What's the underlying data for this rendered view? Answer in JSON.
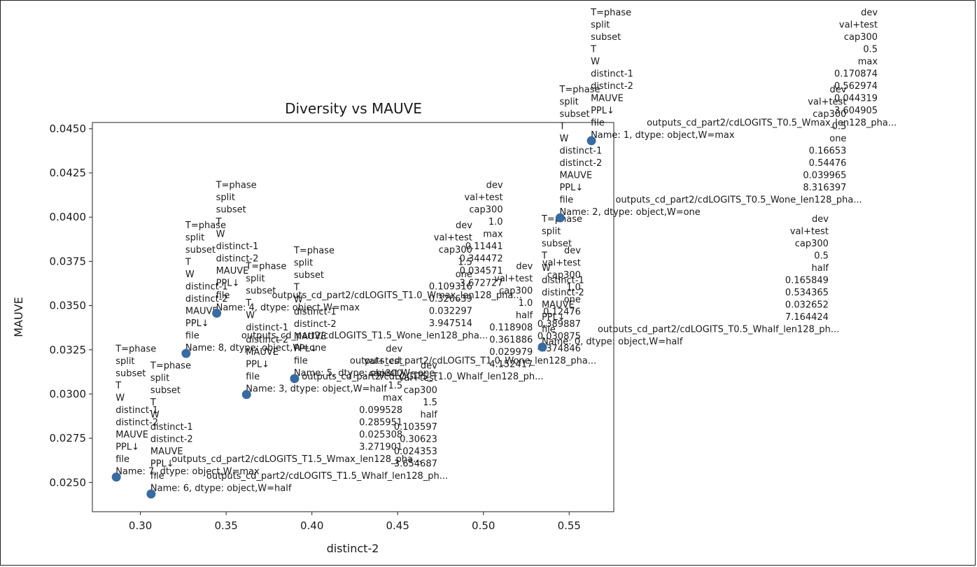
{
  "chart_data": {
    "type": "scatter",
    "title": "Diversity vs MAUVE",
    "xlabel": "distinct-2",
    "ylabel": "MAUVE",
    "xlim": [
      0.272,
      0.576
    ],
    "ylim": [
      0.02335,
      0.04535
    ],
    "xticks": [
      "0.30",
      "0.35",
      "0.40",
      "0.45",
      "0.50",
      "0.55"
    ],
    "xtick_values": [
      0.3,
      0.35,
      0.4,
      0.45,
      0.5,
      0.55
    ],
    "yticks": [
      "0.0250",
      "0.0275",
      "0.0300",
      "0.0325",
      "0.0350",
      "0.0375",
      "0.0400",
      "0.0425",
      "0.0450"
    ],
    "ytick_values": [
      0.025,
      0.0275,
      0.03,
      0.0325,
      0.035,
      0.0375,
      0.04,
      0.0425,
      0.045
    ],
    "grid": false,
    "marker_color": "#3a6b9f",
    "points": [
      {
        "x": 0.562974,
        "y": 0.044319,
        "values": [
          "dev",
          "val+test",
          "cap300",
          "0.5",
          "max",
          "0.170874",
          "0.562974",
          "0.044319",
          "3.604905",
          "outputs_cd_part2/cdLOGITS_T0.5_Wmax_len128_pha..."
        ],
        "name_line": "Name: 1, dtype: object,W=max"
      },
      {
        "x": 0.54476,
        "y": 0.039965,
        "values": [
          "dev",
          "val+test",
          "cap300",
          "0.5",
          "one",
          "0.16653",
          "0.54476",
          "0.039965",
          "8.316397",
          "outputs_cd_part2/cdLOGITS_T0.5_Wone_len128_pha..."
        ],
        "name_line": "Name: 2, dtype: object,W=one"
      },
      {
        "x": 0.534365,
        "y": 0.032652,
        "values": [
          "dev",
          "val+test",
          "cap300",
          "0.5",
          "half",
          "0.165849",
          "0.534365",
          "0.032652",
          "7.164424",
          "outputs_cd_part2/cdLOGITS_T0.5_Whalf_len128_ph..."
        ],
        "name_line": "Name: 0, dtype: object,W=half"
      },
      {
        "x": 0.344472,
        "y": 0.034571,
        "values": [
          "dev",
          "val+test",
          "cap300",
          "1.0",
          "max",
          "0.11441",
          "0.344472",
          "0.034571",
          "3.672727",
          "outputs_cd_part2/cdLOGITS_T1.0_Wmax_len128_pha..."
        ],
        "name_line": "Name: 4, dtype: object,W=max"
      },
      {
        "x": 0.326639,
        "y": 0.032297,
        "values": [
          "dev",
          "val+test",
          "cap300",
          "1.5",
          "one",
          "0.109316",
          "0.326639",
          "0.032297",
          "3.947514",
          "outputs_cd_part2/cdLOGITS_T1.5_Wone_len128_pha..."
        ],
        "name_line": "Name: 8, dtype: object,W=one"
      },
      {
        "x": 0.389887,
        "y": 0.030875,
        "values": [
          "dev",
          "val+test",
          "cap300",
          "1.0",
          "one",
          "0.12476",
          "0.389887",
          "0.030875",
          "4.374846",
          "outputs_cd_part2/cdLOGITS_T1.0_Wone_len128_pha..."
        ],
        "name_line": "Name: 5, dtype: object,W=one"
      },
      {
        "x": 0.361886,
        "y": 0.029979,
        "values": [
          "dev",
          "val+test",
          "cap300",
          "1.0",
          "half",
          "0.118908",
          "0.361886",
          "0.029979",
          "4.152417",
          "outputs_cd_part2/cdLOGITS_T1.0_Whalf_len128_ph..."
        ],
        "name_line": "Name: 3, dtype: object,W=half"
      },
      {
        "x": 0.285951,
        "y": 0.025308,
        "values": [
          "dev",
          "val+test",
          "cap300",
          "1.5",
          "max",
          "0.099528",
          "0.285951",
          "0.025308",
          "3.271901",
          "outputs_cd_part2/cdLOGITS_T1.5_Wmax_len128_pha..."
        ],
        "name_line": "Name: 7, dtype: object,W=max"
      },
      {
        "x": 0.30623,
        "y": 0.024353,
        "values": [
          "dev",
          "val+test",
          "cap300",
          "1.5",
          "half",
          "0.103597",
          "0.30623",
          "0.024353",
          "3.654687",
          "outputs_cd_part2/cdLOGITS_T1.5_Whalf_len128_ph..."
        ],
        "name_line": "Name: 6, dtype: object,W=half"
      }
    ],
    "row_labels": [
      "T=phase",
      "split",
      "subset",
      "T",
      "W",
      "distinct-1",
      "distinct-2",
      "MAUVE",
      "PPL↓",
      "file"
    ]
  }
}
